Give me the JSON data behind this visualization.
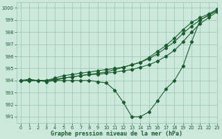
{
  "xlabel": "Graphe pression niveau de la mer (hPa)",
  "ylabel": "",
  "background_color": "#cce8dc",
  "grid_color": "#a0c8b8",
  "line_color": "#1a5c2e",
  "xlim": [
    -0.5,
    23
  ],
  "ylim": [
    990.5,
    1000.5
  ],
  "yticks": [
    991,
    992,
    993,
    994,
    995,
    996,
    997,
    998,
    999,
    1000
  ],
  "xticks": [
    0,
    1,
    2,
    3,
    4,
    5,
    6,
    7,
    8,
    9,
    10,
    11,
    12,
    13,
    14,
    15,
    16,
    17,
    18,
    19,
    20,
    21,
    22,
    23
  ],
  "line1": [
    994.0,
    994.0,
    994.0,
    994.0,
    994.0,
    994.0,
    994.0,
    994.0,
    994.0,
    993.9,
    993.8,
    993.2,
    992.2,
    991.0,
    991.0,
    991.4,
    992.3,
    993.3,
    994.0,
    995.2,
    997.2,
    999.0,
    999.4,
    999.8
  ],
  "line2": [
    994.0,
    994.0,
    994.0,
    994.0,
    994.1,
    994.2,
    994.3,
    994.4,
    994.5,
    994.5,
    994.6,
    994.7,
    994.8,
    994.9,
    995.1,
    995.3,
    995.6,
    996.0,
    996.5,
    997.2,
    998.0,
    998.7,
    999.2,
    999.7
  ],
  "line3": [
    994.0,
    994.0,
    994.0,
    994.0,
    994.2,
    994.4,
    994.5,
    994.6,
    994.7,
    994.8,
    994.9,
    995.0,
    995.1,
    995.3,
    995.5,
    995.8,
    996.2,
    996.7,
    997.2,
    997.9,
    998.5,
    999.0,
    999.4,
    999.8
  ],
  "line4": [
    994.0,
    994.1,
    994.0,
    993.9,
    994.0,
    994.2,
    994.3,
    994.4,
    994.5,
    994.6,
    994.7,
    994.9,
    995.1,
    995.3,
    995.5,
    995.9,
    996.4,
    996.9,
    997.5,
    998.2,
    998.8,
    999.2,
    999.5,
    999.9
  ]
}
